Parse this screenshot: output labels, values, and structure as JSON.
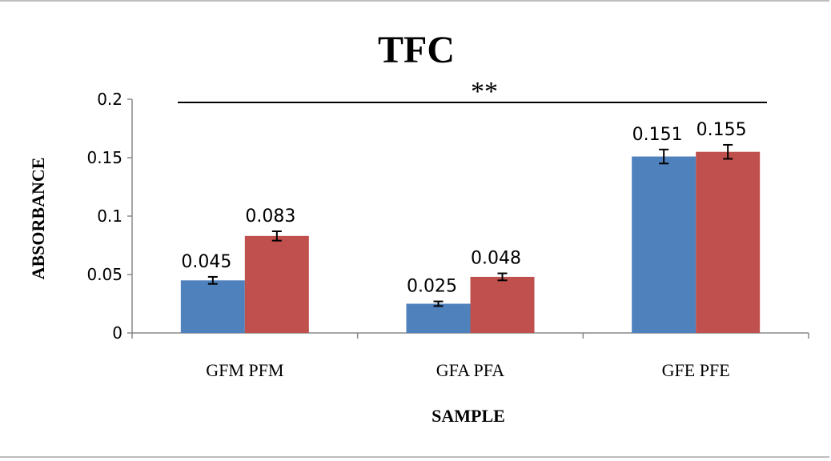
{
  "chart_data": {
    "type": "bar",
    "title": "TFC",
    "xlabel": "SAMPLE",
    "ylabel": "ABSORBANCE",
    "categories": [
      "GFM PFM",
      "GFA PFA",
      "GFE PFE"
    ],
    "series": [
      {
        "color": "#4f81bd",
        "values": [
          0.045,
          0.025,
          0.151
        ],
        "errors": [
          0.003,
          0.002,
          0.006
        ],
        "labels": [
          "0.045",
          "0.025",
          "0.151"
        ]
      },
      {
        "color": "#c0504d",
        "values": [
          0.083,
          0.048,
          0.155
        ],
        "errors": [
          0.004,
          0.003,
          0.006
        ],
        "labels": [
          "0.083",
          "0.048",
          "0.155"
        ]
      }
    ],
    "ylim": [
      0,
      0.2
    ],
    "yticks": [
      "0",
      "0.05",
      "0.1",
      "0.15",
      "0.2"
    ],
    "yticks_values": [
      0,
      0.05,
      0.1,
      0.15,
      0.2
    ],
    "grid": false,
    "annotation": "**"
  }
}
